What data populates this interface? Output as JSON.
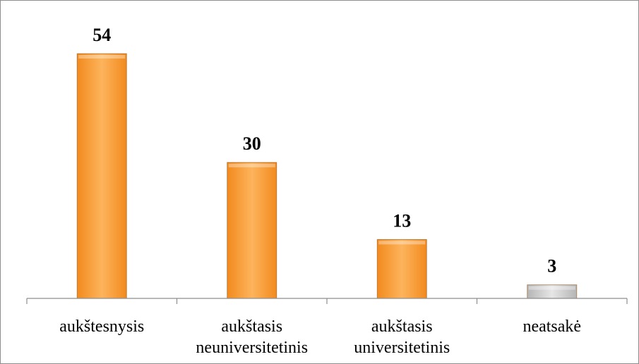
{
  "chart_data": {
    "type": "bar",
    "categories": [
      [
        "aukštesnysis"
      ],
      [
        "aukštasis",
        "neuniversitetinis"
      ],
      [
        "aukštasis",
        "universitetinis"
      ],
      [
        "neatsakė"
      ]
    ],
    "values": [
      54,
      30,
      13,
      3
    ],
    "data_labels": [
      "54",
      "30",
      "13",
      "3"
    ],
    "bar_colors": [
      "#f28a1e",
      "#f28a1e",
      "#f28a1e",
      "#b5b5b5"
    ],
    "bar_highlight_colors": [
      "#fdb45c",
      "#fdb45c",
      "#fdb45c",
      "#e6e6e6"
    ],
    "ylim": [
      0,
      60
    ],
    "grid": false,
    "legend": "none",
    "title": "",
    "xlabel": "",
    "ylabel": ""
  }
}
